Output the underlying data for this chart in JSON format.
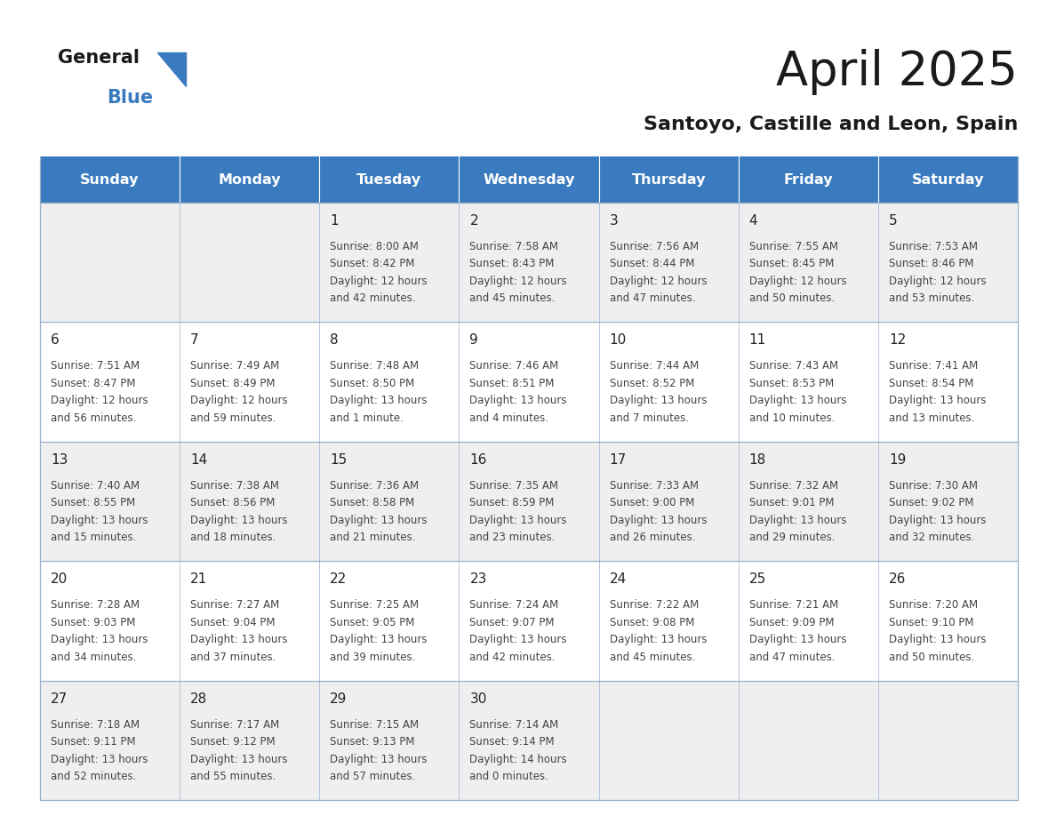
{
  "title": "April 2025",
  "subtitle": "Santoyo, Castille and Leon, Spain",
  "header_bg": "#3a7bbf",
  "header_text": "#ffffff",
  "days_of_week": [
    "Sunday",
    "Monday",
    "Tuesday",
    "Wednesday",
    "Thursday",
    "Friday",
    "Saturday"
  ],
  "row_bg_odd": "#efefef",
  "row_bg_even": "#ffffff",
  "cell_text_color": "#444444",
  "day_num_color": "#222222",
  "border_color": "#9ab0cc",
  "calendar_data": [
    [
      {
        "day": null,
        "sunrise": null,
        "sunset": null,
        "daylight": null
      },
      {
        "day": null,
        "sunrise": null,
        "sunset": null,
        "daylight": null
      },
      {
        "day": 1,
        "sunrise": "8:00 AM",
        "sunset": "8:42 PM",
        "daylight": "12 hours\nand 42 minutes."
      },
      {
        "day": 2,
        "sunrise": "7:58 AM",
        "sunset": "8:43 PM",
        "daylight": "12 hours\nand 45 minutes."
      },
      {
        "day": 3,
        "sunrise": "7:56 AM",
        "sunset": "8:44 PM",
        "daylight": "12 hours\nand 47 minutes."
      },
      {
        "day": 4,
        "sunrise": "7:55 AM",
        "sunset": "8:45 PM",
        "daylight": "12 hours\nand 50 minutes."
      },
      {
        "day": 5,
        "sunrise": "7:53 AM",
        "sunset": "8:46 PM",
        "daylight": "12 hours\nand 53 minutes."
      }
    ],
    [
      {
        "day": 6,
        "sunrise": "7:51 AM",
        "sunset": "8:47 PM",
        "daylight": "12 hours\nand 56 minutes."
      },
      {
        "day": 7,
        "sunrise": "7:49 AM",
        "sunset": "8:49 PM",
        "daylight": "12 hours\nand 59 minutes."
      },
      {
        "day": 8,
        "sunrise": "7:48 AM",
        "sunset": "8:50 PM",
        "daylight": "13 hours\nand 1 minute."
      },
      {
        "day": 9,
        "sunrise": "7:46 AM",
        "sunset": "8:51 PM",
        "daylight": "13 hours\nand 4 minutes."
      },
      {
        "day": 10,
        "sunrise": "7:44 AM",
        "sunset": "8:52 PM",
        "daylight": "13 hours\nand 7 minutes."
      },
      {
        "day": 11,
        "sunrise": "7:43 AM",
        "sunset": "8:53 PM",
        "daylight": "13 hours\nand 10 minutes."
      },
      {
        "day": 12,
        "sunrise": "7:41 AM",
        "sunset": "8:54 PM",
        "daylight": "13 hours\nand 13 minutes."
      }
    ],
    [
      {
        "day": 13,
        "sunrise": "7:40 AM",
        "sunset": "8:55 PM",
        "daylight": "13 hours\nand 15 minutes."
      },
      {
        "day": 14,
        "sunrise": "7:38 AM",
        "sunset": "8:56 PM",
        "daylight": "13 hours\nand 18 minutes."
      },
      {
        "day": 15,
        "sunrise": "7:36 AM",
        "sunset": "8:58 PM",
        "daylight": "13 hours\nand 21 minutes."
      },
      {
        "day": 16,
        "sunrise": "7:35 AM",
        "sunset": "8:59 PM",
        "daylight": "13 hours\nand 23 minutes."
      },
      {
        "day": 17,
        "sunrise": "7:33 AM",
        "sunset": "9:00 PM",
        "daylight": "13 hours\nand 26 minutes."
      },
      {
        "day": 18,
        "sunrise": "7:32 AM",
        "sunset": "9:01 PM",
        "daylight": "13 hours\nand 29 minutes."
      },
      {
        "day": 19,
        "sunrise": "7:30 AM",
        "sunset": "9:02 PM",
        "daylight": "13 hours\nand 32 minutes."
      }
    ],
    [
      {
        "day": 20,
        "sunrise": "7:28 AM",
        "sunset": "9:03 PM",
        "daylight": "13 hours\nand 34 minutes."
      },
      {
        "day": 21,
        "sunrise": "7:27 AM",
        "sunset": "9:04 PM",
        "daylight": "13 hours\nand 37 minutes."
      },
      {
        "day": 22,
        "sunrise": "7:25 AM",
        "sunset": "9:05 PM",
        "daylight": "13 hours\nand 39 minutes."
      },
      {
        "day": 23,
        "sunrise": "7:24 AM",
        "sunset": "9:07 PM",
        "daylight": "13 hours\nand 42 minutes."
      },
      {
        "day": 24,
        "sunrise": "7:22 AM",
        "sunset": "9:08 PM",
        "daylight": "13 hours\nand 45 minutes."
      },
      {
        "day": 25,
        "sunrise": "7:21 AM",
        "sunset": "9:09 PM",
        "daylight": "13 hours\nand 47 minutes."
      },
      {
        "day": 26,
        "sunrise": "7:20 AM",
        "sunset": "9:10 PM",
        "daylight": "13 hours\nand 50 minutes."
      }
    ],
    [
      {
        "day": 27,
        "sunrise": "7:18 AM",
        "sunset": "9:11 PM",
        "daylight": "13 hours\nand 52 minutes."
      },
      {
        "day": 28,
        "sunrise": "7:17 AM",
        "sunset": "9:12 PM",
        "daylight": "13 hours\nand 55 minutes."
      },
      {
        "day": 29,
        "sunrise": "7:15 AM",
        "sunset": "9:13 PM",
        "daylight": "13 hours\nand 57 minutes."
      },
      {
        "day": 30,
        "sunrise": "7:14 AM",
        "sunset": "9:14 PM",
        "daylight": "14 hours\nand 0 minutes."
      },
      {
        "day": null,
        "sunrise": null,
        "sunset": null,
        "daylight": null
      },
      {
        "day": null,
        "sunrise": null,
        "sunset": null,
        "daylight": null
      },
      {
        "day": null,
        "sunrise": null,
        "sunset": null,
        "daylight": null
      }
    ]
  ]
}
